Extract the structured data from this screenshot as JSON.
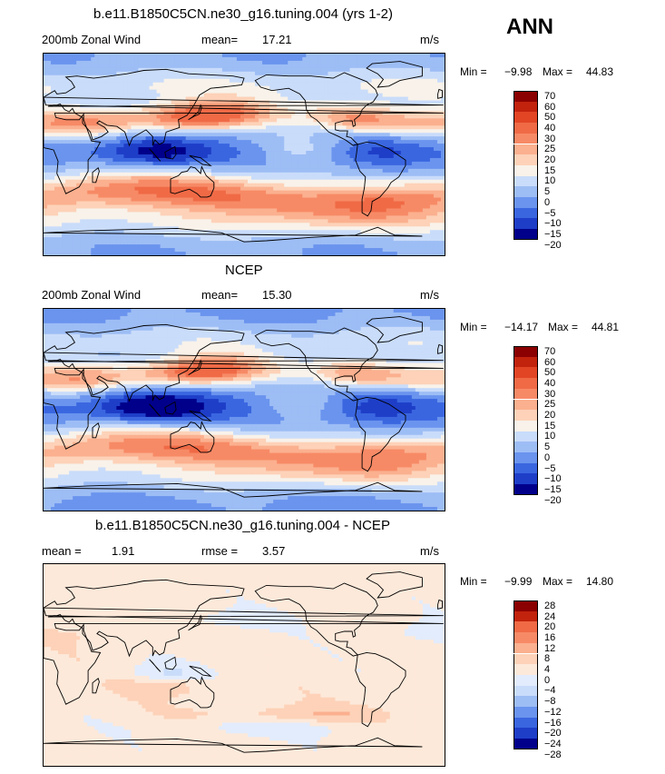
{
  "season": "ANN",
  "units": "m/s",
  "colors": {
    "full_field": [
      "#00008b",
      "#1e3ec8",
      "#3a66e0",
      "#6a94ee",
      "#9dbdf5",
      "#c9dcfa",
      "#f8f2ea",
      "#fdd2b8",
      "#fbb08f",
      "#f78a66",
      "#f06a46",
      "#e24524",
      "#c2230d",
      "#8b0000"
    ],
    "diff_field": [
      "#00008b",
      "#1e3ec8",
      "#3a66e0",
      "#6a94ee",
      "#9dbdf5",
      "#c9dcfa",
      "#e2ecfc",
      "#fde9da",
      "#fdd2b8",
      "#fbb08f",
      "#f78a66",
      "#f06a46",
      "#c2230d",
      "#8b0000"
    ]
  },
  "panels": [
    {
      "title": "b.e11.B1850C5CN.ne30_g16.tuning.004 (yrs 1-2)",
      "left_label": "200mb  Zonal  Wind",
      "stat1_label": "mean=",
      "stat1_value": "17.21",
      "stat2_label": "",
      "stat2_value": "",
      "units": "m/s",
      "min_label": "Min =",
      "min_value": "−9.98",
      "max_label": "Max =",
      "max_value": "44.83",
      "colorbar_labels": [
        "70",
        "60",
        "50",
        "40",
        "30",
        "25",
        "20",
        "15",
        "10",
        "5",
        "0",
        "−5",
        "−10",
        "−15",
        "−20"
      ]
    },
    {
      "title": "NCEP",
      "left_label": "200mb  Zonal  Wind",
      "stat1_label": "mean=",
      "stat1_value": "15.30",
      "stat2_label": "",
      "stat2_value": "",
      "units": "m/s",
      "min_label": "Min =",
      "min_value": "−14.17",
      "max_label": "Max =",
      "max_value": "44.81",
      "colorbar_labels": [
        "70",
        "60",
        "50",
        "40",
        "30",
        "25",
        "20",
        "15",
        "10",
        "5",
        "0",
        "−5",
        "−10",
        "−15",
        "−20"
      ]
    },
    {
      "title": "b.e11.B1850C5CN.ne30_g16.tuning.004 - NCEP",
      "left_label": "mean =",
      "stat1_label": "",
      "stat1_value": "1.91",
      "stat2_label": "rmse =",
      "stat2_value": "3.57",
      "units": "m/s",
      "min_label": "Min =",
      "min_value": "−9.99",
      "max_label": "Max =",
      "max_value": "14.80",
      "colorbar_labels": [
        "28",
        "24",
        "20",
        "16",
        "12",
        "8",
        "4",
        "0",
        "−4",
        "−8",
        "−12",
        "−16",
        "−20",
        "−24",
        "−28"
      ]
    }
  ],
  "chart_data": [
    {
      "type": "heatmap",
      "title": "b.e11.B1850C5CN.ne30_g16.tuning.004 (yrs 1-2)",
      "variable": "200mb  Zonal  Wind",
      "season": "ANN",
      "units": "m/s",
      "mean": 17.21,
      "min": -9.98,
      "max": 44.83,
      "contour_levels": [
        -20,
        -15,
        -10,
        -5,
        0,
        5,
        10,
        15,
        20,
        25,
        30,
        40,
        50,
        60,
        70
      ],
      "approx_zonal_profile": {
        "lat": [
          90,
          75,
          60,
          45,
          30,
          15,
          0,
          -15,
          -30,
          -45,
          -60,
          -75,
          -90
        ],
        "u": [
          2,
          8,
          14,
          20,
          32,
          10,
          -6,
          8,
          28,
          30,
          20,
          6,
          2
        ]
      }
    },
    {
      "type": "heatmap",
      "title": "NCEP",
      "variable": "200mb  Zonal  Wind",
      "season": "ANN",
      "units": "m/s",
      "mean": 15.3,
      "min": -14.17,
      "max": 44.81,
      "contour_levels": [
        -20,
        -15,
        -10,
        -5,
        0,
        5,
        10,
        15,
        20,
        25,
        30,
        40,
        50,
        60,
        70
      ],
      "approx_zonal_profile": {
        "lat": [
          90,
          75,
          60,
          45,
          30,
          15,
          0,
          -15,
          -30,
          -45,
          -60,
          -75,
          -90
        ],
        "u": [
          0,
          6,
          12,
          18,
          30,
          8,
          -8,
          6,
          26,
          26,
          16,
          4,
          0
        ]
      }
    },
    {
      "type": "heatmap",
      "title": "b.e11.B1850C5CN.ne30_g16.tuning.004 - NCEP",
      "variable": "200mb  Zonal  Wind",
      "season": "ANN",
      "units": "m/s",
      "mean": 1.91,
      "rmse": 3.57,
      "min": -9.99,
      "max": 14.8,
      "contour_levels": [
        -28,
        -24,
        -20,
        -16,
        -12,
        -8,
        -4,
        0,
        4,
        8,
        12,
        16,
        20,
        24,
        28
      ],
      "approx_zonal_profile": {
        "lat": [
          90,
          75,
          60,
          45,
          30,
          15,
          0,
          -15,
          -30,
          -45,
          -60,
          -75,
          -90
        ],
        "u": [
          2,
          2,
          2,
          2,
          2,
          2,
          2,
          2,
          2,
          4,
          4,
          2,
          2
        ]
      }
    }
  ]
}
